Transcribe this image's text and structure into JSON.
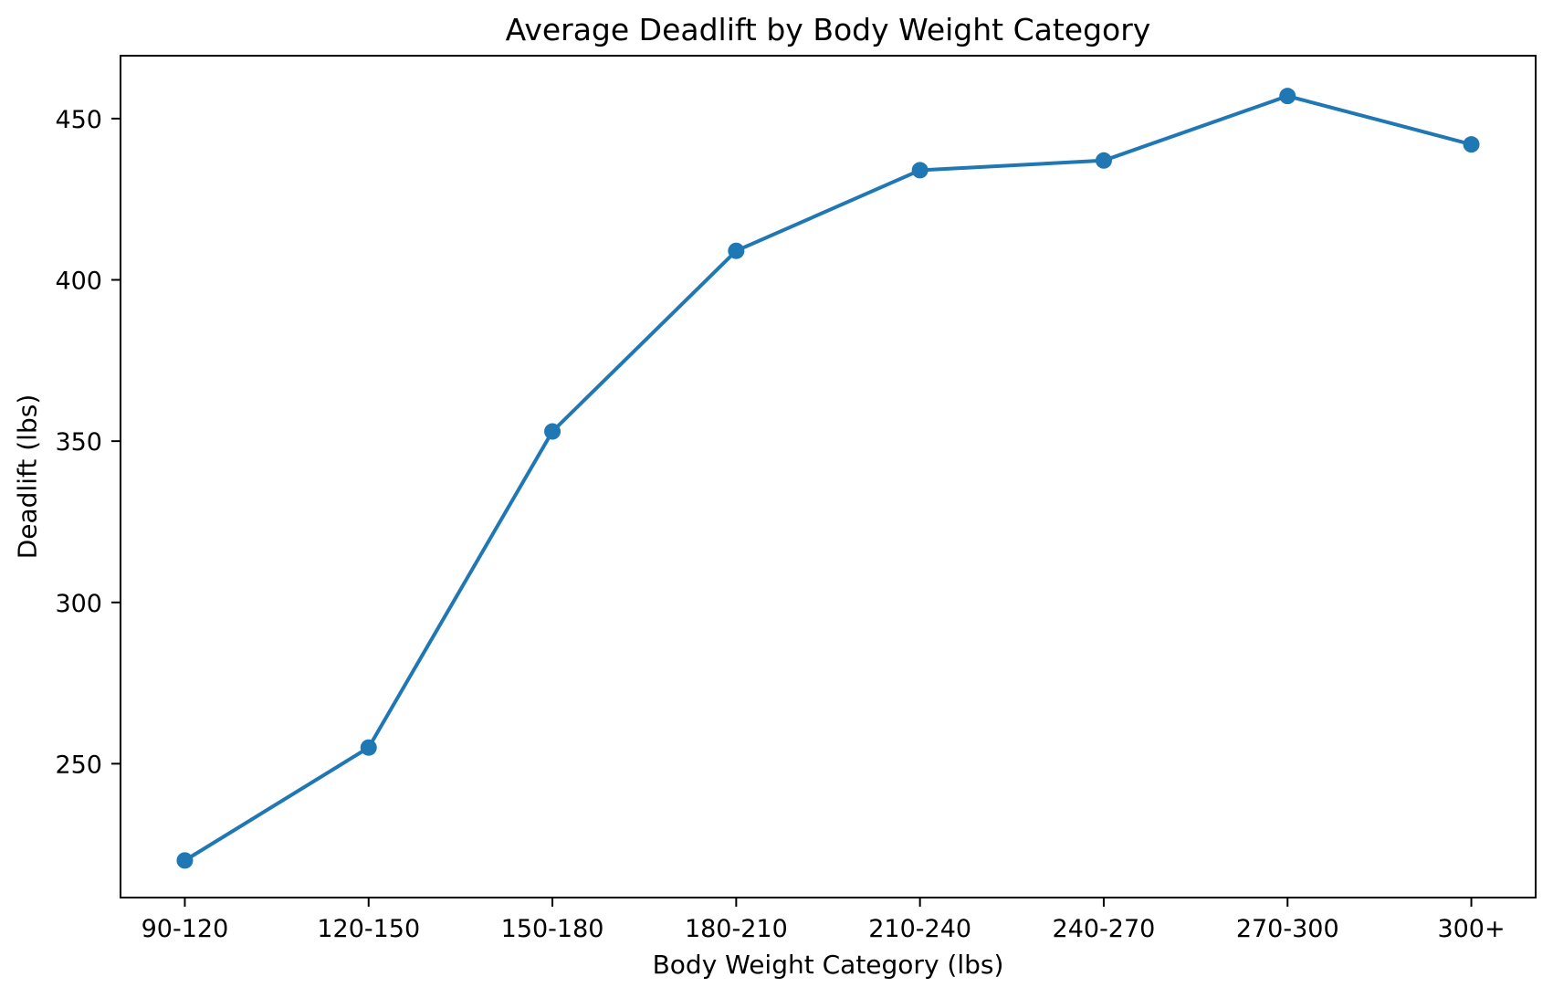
{
  "figure": {
    "background": "#ffffff",
    "text_color": "#000000",
    "spine_color": "#000000"
  },
  "chart_data": {
    "type": "line",
    "title": "Average Deadlift by Body Weight Category",
    "xlabel": "Body Weight Category (lbs)",
    "ylabel": "Deadlift (lbs)",
    "categories": [
      "90-120",
      "120-150",
      "150-180",
      "180-210",
      "210-240",
      "240-270",
      "270-300",
      "300+"
    ],
    "values": [
      220,
      255,
      353,
      409,
      434,
      437,
      457,
      442
    ],
    "series_name": "Average Deadlift",
    "yticks": [
      250,
      300,
      350,
      400,
      450
    ],
    "ylim": [
      208.5,
      469.5
    ],
    "grid": false,
    "legend_position": "none",
    "line_color": "#1f77b4",
    "marker": "circle"
  }
}
